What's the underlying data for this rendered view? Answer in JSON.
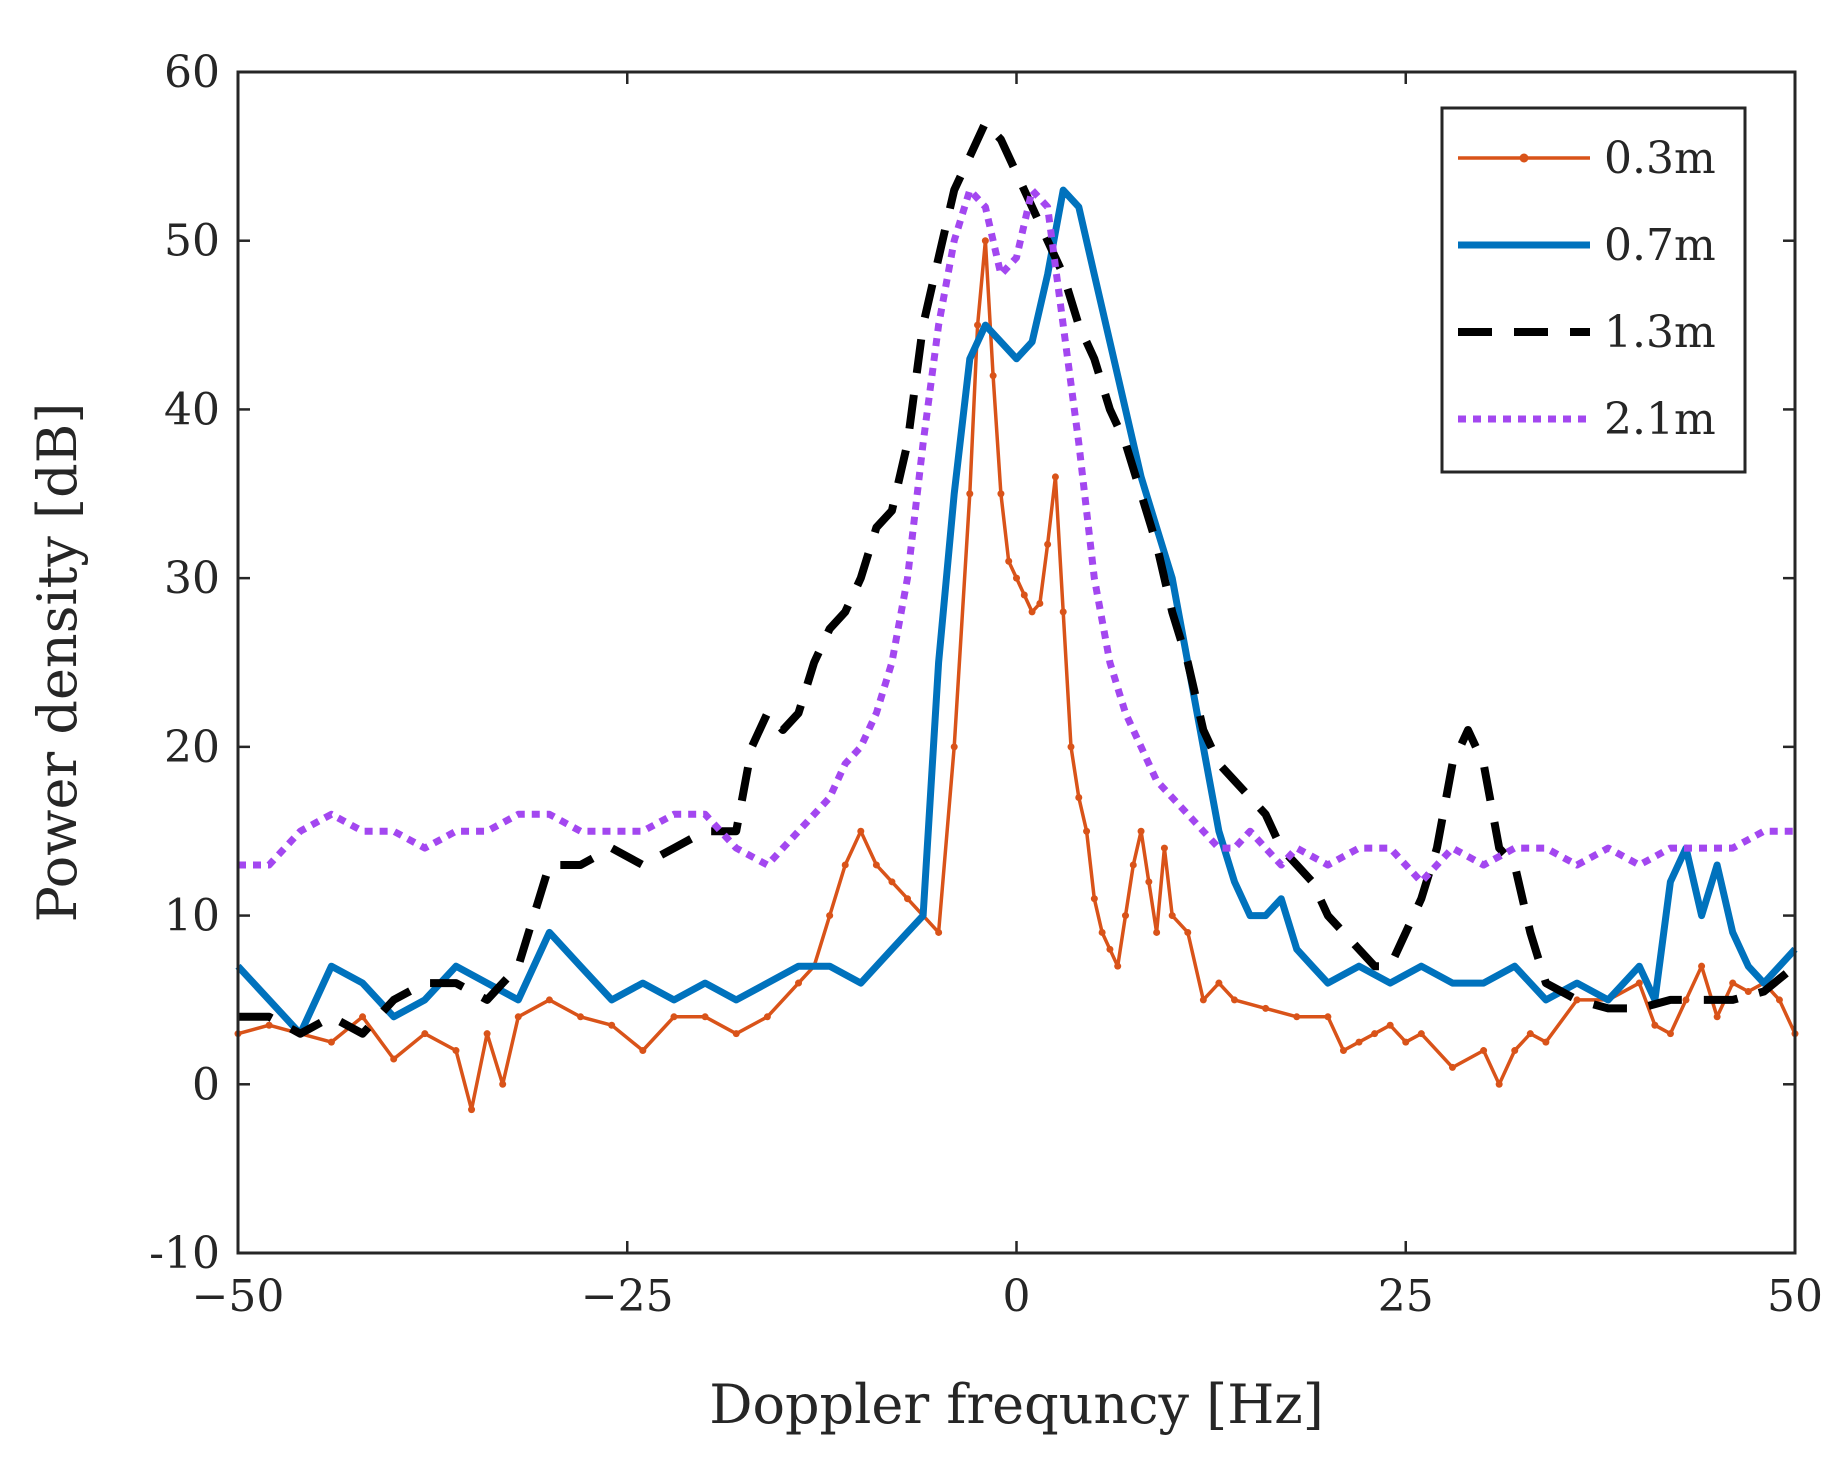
{
  "chart_data": {
    "type": "line",
    "title": "",
    "xlabel": "Doppler frequncy [Hz]",
    "ylabel": "Power density [dB]",
    "xlim": [
      -50,
      50
    ],
    "ylim": [
      -10,
      60
    ],
    "xticks": [
      -50,
      -25,
      0,
      25,
      50
    ],
    "xtick_labels": [
      "−50",
      "−25",
      "0",
      "25",
      "50"
    ],
    "yticks": [
      -10,
      0,
      10,
      20,
      30,
      40,
      50,
      60
    ],
    "ytick_labels": [
      "-10",
      "0",
      "10",
      "20",
      "30",
      "40",
      "50",
      "60"
    ],
    "grid": true,
    "legend_position": "top-right",
    "series": [
      {
        "name": "0.3m",
        "color": "#D95319",
        "style": "solid-dot",
        "x": [
          -50,
          -48,
          -46,
          -44,
          -42,
          -40,
          -38,
          -36,
          -35,
          -34,
          -33,
          -32,
          -30,
          -28,
          -26,
          -24,
          -22,
          -20,
          -18,
          -16,
          -14,
          -13,
          -12,
          -11,
          -10,
          -9,
          -8,
          -7,
          -6,
          -5,
          -4,
          -3,
          -2.5,
          -2,
          -1.5,
          -1,
          -0.5,
          0,
          0.5,
          1,
          1.5,
          2,
          2.5,
          3,
          3.5,
          4,
          4.5,
          5,
          5.5,
          6,
          6.5,
          7,
          7.5,
          8,
          8.5,
          9,
          9.5,
          10,
          11,
          12,
          13,
          14,
          16,
          18,
          20,
          21,
          22,
          23,
          24,
          25,
          26,
          28,
          30,
          31,
          32,
          33,
          34,
          36,
          38,
          40,
          41,
          42,
          43,
          44,
          45,
          46,
          47,
          48,
          49,
          50
        ],
        "values": [
          3,
          3.5,
          3,
          2.5,
          4,
          1.5,
          3,
          2,
          -1.5,
          3,
          0,
          4,
          5,
          4,
          3.5,
          2,
          4,
          4,
          3,
          4,
          6,
          7,
          10,
          13,
          15,
          13,
          12,
          11,
          10,
          9,
          20,
          35,
          45,
          50,
          42,
          35,
          31,
          30,
          29,
          28,
          28.5,
          32,
          36,
          28,
          20,
          17,
          15,
          11,
          9,
          8,
          7,
          10,
          13,
          15,
          12,
          9,
          14,
          10,
          9,
          5,
          6,
          5,
          4.5,
          4,
          4,
          2,
          2.5,
          3,
          3.5,
          2.5,
          3,
          1,
          2,
          0,
          2,
          3,
          2.5,
          5,
          5,
          6,
          3.5,
          3,
          5,
          7,
          4,
          6,
          5.5,
          6,
          5,
          3
        ]
      },
      {
        "name": "0.7m",
        "color": "#0072BD",
        "style": "solid",
        "x": [
          -50,
          -48,
          -46,
          -44,
          -42,
          -40,
          -38,
          -36,
          -34,
          -32,
          -30,
          -28,
          -26,
          -24,
          -22,
          -20,
          -18,
          -16,
          -14,
          -12,
          -10,
          -8,
          -7,
          -6,
          -5,
          -4,
          -3,
          -2,
          -1,
          0,
          1,
          2,
          3,
          4,
          5,
          6,
          7,
          8,
          9,
          10,
          11,
          12,
          13,
          14,
          15,
          16,
          17,
          18,
          19,
          20,
          22,
          24,
          26,
          28,
          30,
          32,
          34,
          36,
          38,
          40,
          41,
          42,
          43,
          44,
          45,
          46,
          47,
          48,
          50
        ],
        "values": [
          7,
          5,
          3,
          7,
          6,
          4,
          5,
          7,
          6,
          5,
          9,
          7,
          5,
          6,
          5,
          6,
          5,
          6,
          7,
          7,
          6,
          8,
          9,
          10,
          25,
          35,
          43,
          45,
          44,
          43,
          44,
          48,
          53,
          52,
          48,
          44,
          40,
          36,
          33,
          30,
          25,
          20,
          15,
          12,
          10,
          10,
          11,
          8,
          7,
          6,
          7,
          6,
          7,
          6,
          6,
          7,
          5,
          6,
          5,
          7,
          5,
          12,
          14,
          10,
          13,
          9,
          7,
          6,
          8
        ]
      },
      {
        "name": "1.3m",
        "color": "#000000",
        "style": "dashed",
        "x": [
          -50,
          -48,
          -46,
          -44,
          -42,
          -40,
          -38,
          -36,
          -34,
          -32,
          -30,
          -28,
          -26,
          -24,
          -22,
          -20,
          -18,
          -17,
          -16,
          -15,
          -14,
          -13,
          -12,
          -11,
          -10,
          -9,
          -8,
          -7,
          -6,
          -5,
          -4,
          -3,
          -2,
          -1,
          0,
          1,
          2,
          3,
          4,
          5,
          6,
          7,
          8,
          9,
          10,
          11,
          12,
          13,
          14,
          15,
          16,
          17,
          18,
          19,
          20,
          21,
          22,
          23,
          24,
          25,
          26,
          27,
          28,
          29,
          30,
          31,
          32,
          33,
          34,
          36,
          38,
          40,
          42,
          44,
          46,
          48,
          50
        ],
        "values": [
          4,
          4,
          3,
          4,
          3,
          5,
          6,
          6,
          5,
          7,
          13,
          13,
          14,
          13,
          14,
          15,
          15,
          20,
          22,
          21,
          22,
          25,
          27,
          28,
          30,
          33,
          34,
          38,
          45,
          49,
          53,
          55,
          57,
          56,
          54,
          52,
          50,
          48,
          45,
          43,
          40,
          38,
          35,
          32,
          28,
          25,
          21,
          19,
          18,
          17,
          16,
          14,
          13,
          12,
          10,
          9,
          8,
          7,
          7,
          9,
          11,
          14,
          19,
          21,
          19,
          14,
          13,
          9,
          6,
          5,
          4.5,
          4.5,
          5,
          5,
          5,
          5.5,
          7
        ]
      },
      {
        "name": "2.1m",
        "color": "#A347F0",
        "style": "dotted",
        "x": [
          -50,
          -48,
          -46,
          -44,
          -42,
          -40,
          -38,
          -36,
          -34,
          -32,
          -30,
          -28,
          -26,
          -24,
          -22,
          -20,
          -18,
          -16,
          -14,
          -12,
          -11,
          -10,
          -9,
          -8,
          -7,
          -6,
          -5,
          -4,
          -3,
          -2,
          -1,
          0,
          1,
          2,
          3,
          4,
          5,
          6,
          7,
          8,
          9,
          10,
          11,
          12,
          13,
          14,
          15,
          16,
          17,
          18,
          20,
          22,
          24,
          26,
          28,
          30,
          32,
          34,
          36,
          38,
          40,
          42,
          44,
          46,
          48,
          50
        ],
        "values": [
          13,
          13,
          15,
          16,
          15,
          15,
          14,
          15,
          15,
          16,
          16,
          15,
          15,
          15,
          16,
          16,
          14,
          13,
          15,
          17,
          19,
          20,
          22,
          25,
          30,
          38,
          45,
          50,
          53,
          52,
          48,
          49,
          53,
          52,
          45,
          38,
          30,
          25,
          22,
          20,
          18,
          17,
          16,
          15,
          14,
          14,
          15,
          14,
          13,
          14,
          13,
          14,
          14,
          12,
          14,
          13,
          14,
          14,
          13,
          14,
          13,
          14,
          14,
          14,
          15,
          15
        ]
      }
    ]
  }
}
